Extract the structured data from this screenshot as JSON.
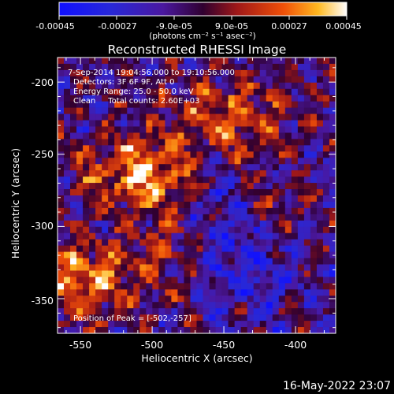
{
  "colorbar": {
    "tick_labels": [
      "-0.00045",
      "-0.00027",
      "-9.0e-05",
      "9.0e-05",
      "0.00027",
      "0.00045"
    ],
    "units_label": "(photons cm⁻² s⁻¹ asec⁻²)",
    "range": [
      -0.00045,
      0.00045
    ],
    "colormap": "bluered-hot"
  },
  "title": "Reconstructed RHESSI Image",
  "annotations": {
    "time_range": "7-Sep-2014 19:04:56.000 to 19:10:56.000",
    "detectors": "Detectors: 3F 6F 9F, Att 0",
    "energy_range": "Energy Range: 25.0 - 50.0 keV",
    "method_counts": "Clean     Total counts: 2.60E+03",
    "peak_position": "Position of Peak = [-502,-257]"
  },
  "axes": {
    "x_label": "Heliocentric X (arcsec)",
    "y_label": "Heliocentric Y (arcsec)",
    "x_ticks": [
      "-550",
      "-500",
      "-450",
      "-400"
    ],
    "y_ticks": [
      "-200",
      "-250",
      "-300",
      "-350"
    ],
    "x_range": [
      -566,
      -372
    ],
    "y_range": [
      -374,
      -183
    ]
  },
  "footer": {
    "timestamp": "16-May-2022 23:07"
  },
  "chart_data": {
    "type": "heatmap",
    "title": "Reconstructed RHESSI Image",
    "xlabel": "Heliocentric X (arcsec)",
    "ylabel": "Heliocentric Y (arcsec)",
    "xlim": [
      -566,
      -372
    ],
    "ylim": [
      -374,
      -183
    ],
    "x_ticks": [
      -550,
      -500,
      -450,
      -400
    ],
    "y_ticks": [
      -200,
      -250,
      -300,
      -350
    ],
    "grid": false,
    "value_range": [
      -0.00045,
      0.00045
    ],
    "peak": [
      -502,
      -257
    ],
    "peak_label": "Position of Peak = [-502,-257]",
    "legend": "colorbar-top"
  }
}
